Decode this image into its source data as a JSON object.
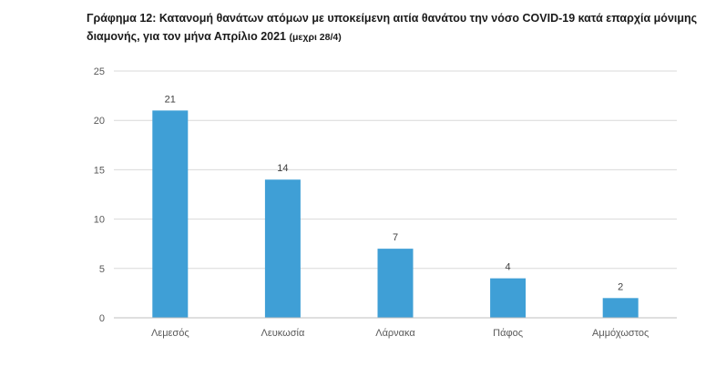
{
  "title": {
    "main": "Γράφημα 12: Κατανομή θανάτων ατόμων με υποκείμενη αιτία θανάτου την νόσο COVID-19 κατά επαρχία μόνιμης διαμονής, για τον μήνα Απρίλιο 2021",
    "note": "(μεχρι 28/4)"
  },
  "colors": {
    "bar": "#3f9fd6",
    "grid": "#d9d9d9",
    "axis": "#bfbfbf"
  },
  "chart_data": {
    "type": "bar",
    "title": "Γράφημα 12: Κατανομή θανάτων ατόμων με υποκείμενη αιτία θανάτου την νόσο COVID-19 κατά επαρχία μόνιμης διαμονής, για τον μήνα Απρίλιο 2021 (μεχρι 28/4)",
    "categories": [
      "Λεμεσός",
      "Λευκωσία",
      "Λάρνακα",
      "Πάφος",
      "Αμμόχωστος"
    ],
    "values": [
      21,
      14,
      7,
      4,
      2
    ],
    "xlabel": "",
    "ylabel": "",
    "ylim": [
      0,
      25
    ],
    "yticks": [
      0,
      5,
      10,
      15,
      20,
      25
    ],
    "grid": true,
    "data_labels": true,
    "legend": "none"
  }
}
